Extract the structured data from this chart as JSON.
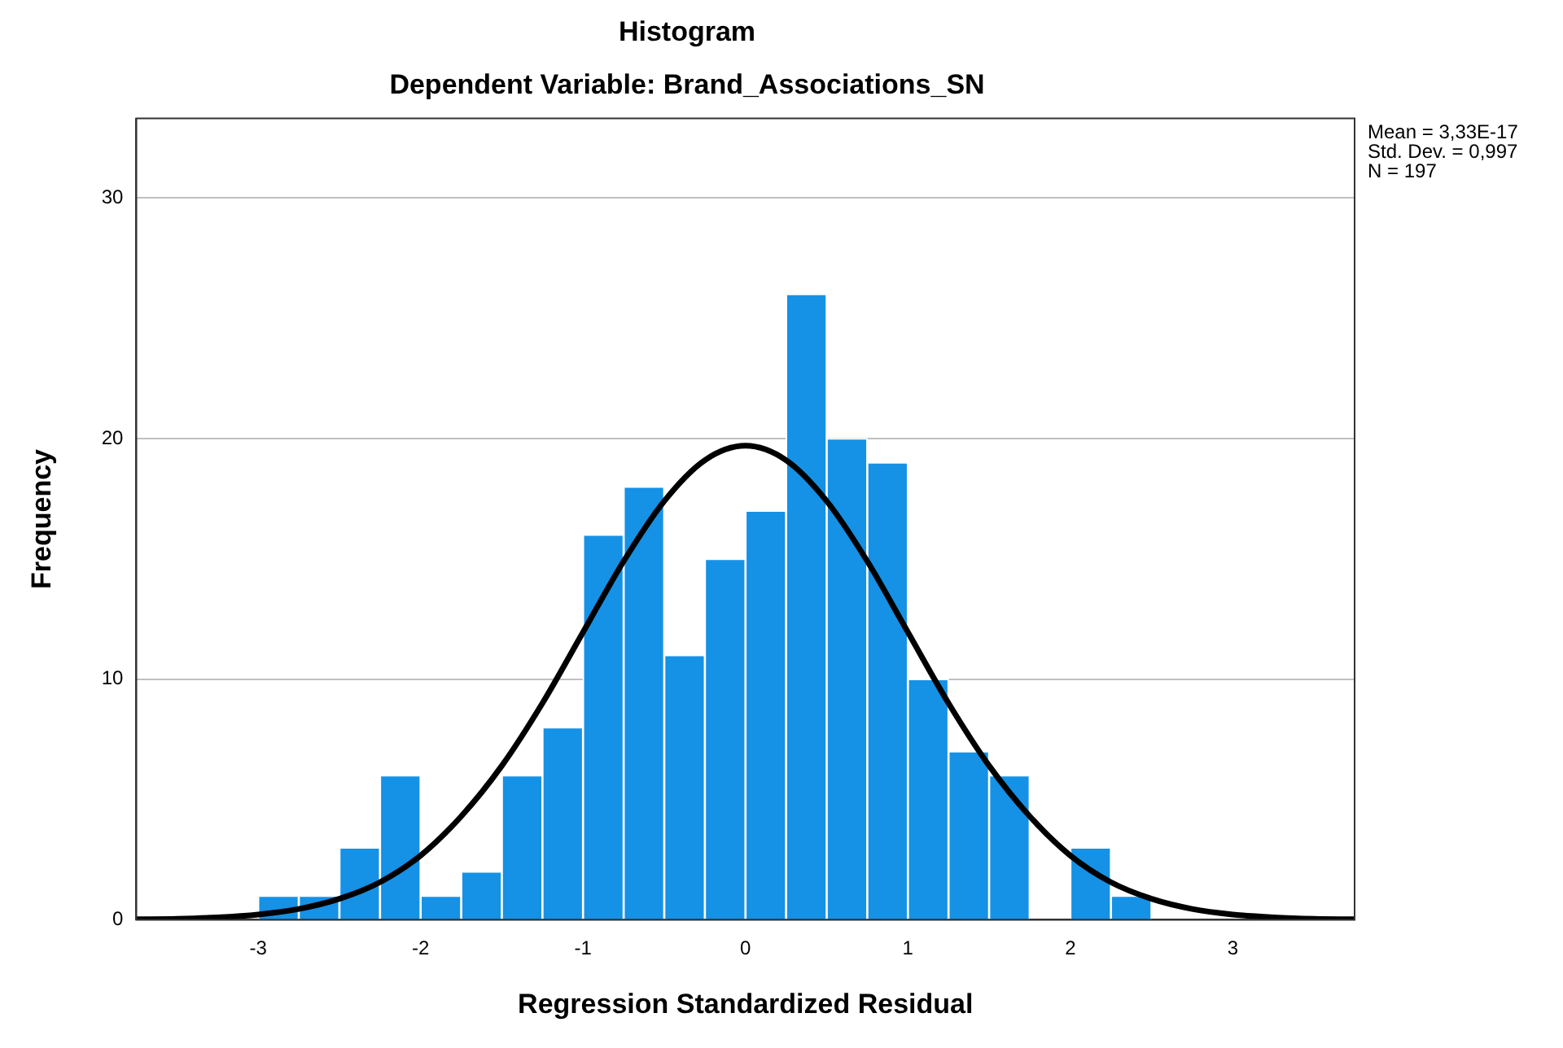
{
  "chart_data": {
    "type": "histogram",
    "title": "Histogram",
    "subtitle": "Dependent Variable: Brand_Associations_SN",
    "xlabel": "Regression Standardized Residual",
    "ylabel": "Frequency",
    "bins": [
      -3,
      -2.75,
      -2.5,
      -2.25,
      -2,
      -1.75,
      -1.5,
      -1.25,
      -1,
      -0.75,
      -0.5,
      -0.25,
      0,
      0.25,
      0.5,
      0.75,
      1,
      1.25,
      1.5,
      1.75,
      2,
      2.25,
      2.5
    ],
    "values": [
      1,
      1,
      3,
      6,
      1,
      2,
      6,
      8,
      16,
      18,
      11,
      15,
      17,
      26,
      20,
      19,
      10,
      7,
      6,
      0,
      3,
      1
    ],
    "color": "#1591e6",
    "series": [
      {
        "type": "line",
        "color": "#000000",
        "x": [
          -3.75,
          -3.5,
          -3.25,
          -3,
          -2.75,
          -2.5,
          -2.25,
          -2,
          -1.75,
          -1.5,
          -1.25,
          -1,
          -0.75,
          -0.5,
          -0.25,
          0,
          0.25,
          0.5,
          0.75,
          1,
          1.25,
          1.5,
          1.75,
          2,
          2.25,
          2.5,
          2.75,
          3,
          3.25,
          3.5,
          3.75
        ],
        "values": [
          0.02,
          0.04,
          0.1,
          0.22,
          0.45,
          0.87,
          1.56,
          2.67,
          4.3,
          6.4,
          9.0,
          11.95,
          14.9,
          17.4,
          19.1,
          19.7,
          19.1,
          17.4,
          14.9,
          11.95,
          9.0,
          6.4,
          4.3,
          2.67,
          1.56,
          0.87,
          0.45,
          0.22,
          0.1,
          0.04,
          0.02
        ]
      }
    ],
    "xlim": [
      -3.75,
      3.75
    ],
    "xticks": [
      -3,
      -2,
      -1,
      0,
      1,
      2,
      3
    ],
    "ylim": [
      0,
      33.3
    ],
    "yticks": [
      0,
      10,
      20,
      30
    ],
    "grid": "y",
    "legend": false,
    "marker": "none",
    "line_style": "solid",
    "annotations": [
      "Mean = 3,33E-17",
      "Std. Dev. = 0,997",
      "N = 197"
    ]
  }
}
